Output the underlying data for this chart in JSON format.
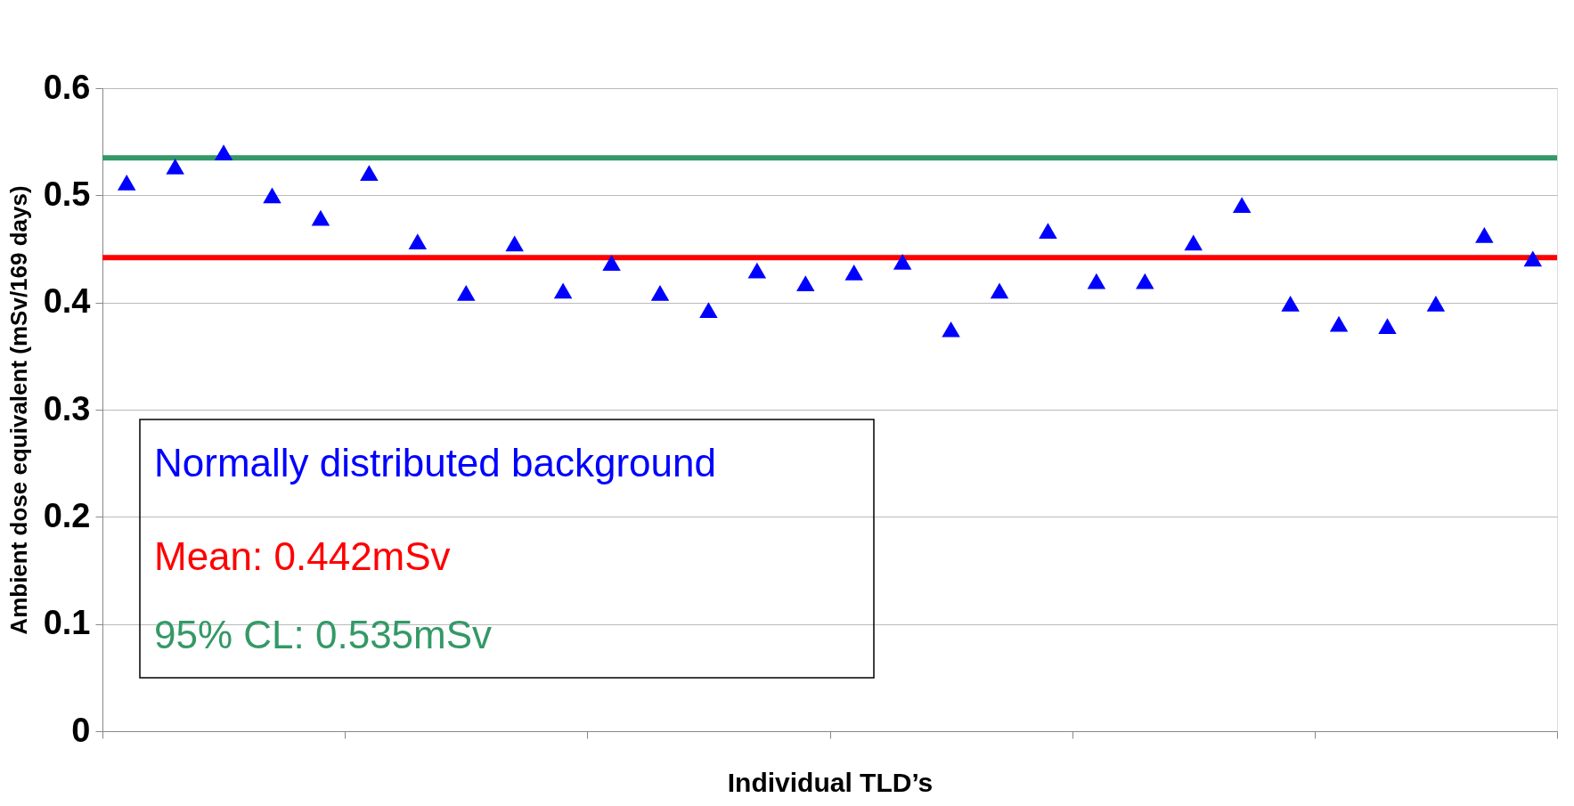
{
  "chart_data": {
    "type": "scatter",
    "xlabel": "Individual TLD’s",
    "ylabel": "Ambient dose equivalent (mSv/169 days)",
    "categories": [
      null,
      null,
      null,
      null,
      null,
      null,
      null,
      null,
      null,
      null,
      null,
      null,
      null,
      null,
      null,
      null,
      null,
      null,
      null,
      null,
      null,
      null,
      null,
      null,
      null,
      null,
      null,
      null,
      null,
      null
    ],
    "series": [
      {
        "color": "#0000ff",
        "values": [
          0.512,
          0.527,
          0.54,
          0.5,
          0.479,
          0.521,
          0.457,
          0.409,
          0.455,
          0.411,
          0.437,
          0.409,
          0.393,
          0.43,
          0.418,
          0.428,
          0.438,
          0.375,
          0.411,
          0.467,
          0.42,
          0.42,
          0.456,
          0.491,
          0.399,
          0.38,
          0.378,
          0.399,
          0.463,
          0.441
        ]
      }
    ],
    "marker": "triangle",
    "ylim": [
      0,
      0.6
    ],
    "yticks": [
      0,
      0.1,
      0.2,
      0.3,
      0.4,
      0.5,
      0.6
    ],
    "tick_labels": "y",
    "grid": "y",
    "ref_lines": [
      {
        "axis": "y",
        "value": 0.442,
        "color": "#ff0000"
      },
      {
        "axis": "y",
        "value": 0.535,
        "color": "#339966"
      }
    ],
    "annotations": [
      "Normally distributed background",
      "Mean: 0.442mSv",
      "95% CL: 0.535mSv"
    ]
  }
}
